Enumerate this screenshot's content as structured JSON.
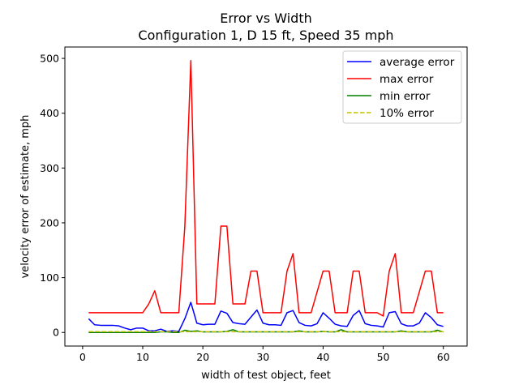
{
  "chart_data": {
    "type": "line",
    "title": "Error vs Width",
    "subtitle": "Configuration 1, D 15 ft, Speed 35 mph",
    "xlabel": "width of test object, feet",
    "ylabel": "velocity error of estimate, mph",
    "xlim": [
      -2.95,
      63.95
    ],
    "ylim": [
      -24.8,
      520.8
    ],
    "xticks": [
      0,
      10,
      20,
      30,
      40,
      50,
      60
    ],
    "yticks": [
      0,
      100,
      200,
      300,
      400,
      500
    ],
    "legend_position": "top-right",
    "x": [
      1,
      2,
      3,
      4,
      5,
      6,
      7,
      8,
      9,
      10,
      11,
      12,
      13,
      14,
      15,
      16,
      17,
      18,
      19,
      20,
      21,
      22,
      23,
      24,
      25,
      26,
      27,
      28,
      29,
      30,
      31,
      32,
      33,
      34,
      35,
      36,
      37,
      38,
      39,
      40,
      41,
      42,
      43,
      44,
      45,
      46,
      47,
      48,
      49,
      50,
      51,
      52,
      53,
      54,
      55,
      56,
      57,
      58,
      59,
      60
    ],
    "series": [
      {
        "name": "average error",
        "color": "#0000ff",
        "style": "solid",
        "values": [
          25,
          14,
          13,
          13,
          13,
          12,
          8,
          5,
          8,
          8,
          3,
          3,
          6,
          2,
          3,
          2,
          25,
          55,
          17,
          14,
          15,
          15,
          39,
          35,
          18,
          16,
          15,
          28,
          41,
          17,
          14,
          14,
          13,
          36,
          40,
          18,
          13,
          12,
          16,
          36,
          26,
          15,
          12,
          11,
          31,
          40,
          16,
          13,
          12,
          10,
          36,
          38,
          16,
          12,
          12,
          17,
          36,
          27,
          14,
          11
        ]
      },
      {
        "name": "max error",
        "color": "#ff0000",
        "style": "solid",
        "values": [
          36,
          36,
          36,
          36,
          36,
          36,
          36,
          36,
          36,
          36,
          52,
          76,
          36,
          36,
          36,
          36,
          193,
          496,
          52,
          52,
          52,
          52,
          194,
          194,
          52,
          52,
          52,
          112,
          112,
          36,
          36,
          36,
          36,
          112,
          144,
          36,
          36,
          36,
          74,
          112,
          112,
          36,
          36,
          36,
          112,
          112,
          36,
          36,
          36,
          30,
          112,
          144,
          36,
          36,
          36,
          74,
          112,
          112,
          36,
          36
        ]
      },
      {
        "name": "min error",
        "color": "#008000",
        "style": "solid",
        "values": [
          0,
          0,
          0,
          0,
          0,
          0,
          0,
          0,
          0,
          0,
          0,
          0,
          1,
          1,
          0,
          0,
          4,
          2,
          3,
          1,
          1,
          1,
          1,
          2,
          5,
          1,
          1,
          1,
          1,
          1,
          1,
          1,
          1,
          1,
          1,
          3,
          1,
          1,
          1,
          2,
          1,
          1,
          5,
          1,
          1,
          1,
          1,
          1,
          1,
          1,
          1,
          1,
          3,
          1,
          1,
          1,
          1,
          1,
          4,
          1
        ]
      },
      {
        "name": "10% error",
        "color": "#bfbf00",
        "style": "dashed",
        "values": [
          1.5,
          1.5,
          1.5,
          1.5,
          1.5,
          1.5,
          1.5,
          1.5,
          1.5,
          1.5,
          1.5,
          1.5,
          1.5,
          1.5,
          1.5,
          1.5,
          1.5,
          1.5,
          1.5,
          1.5,
          1.5,
          1.5,
          1.5,
          1.5,
          1.5,
          1.5,
          1.5,
          1.5,
          1.5,
          1.5,
          1.5,
          1.5,
          1.5,
          1.5,
          1.5,
          1.5,
          1.5,
          1.5,
          1.5,
          1.5,
          1.5,
          1.5,
          1.5,
          1.5,
          1.5,
          1.5,
          1.5,
          1.5,
          1.5,
          1.5,
          1.5,
          1.5,
          1.5,
          1.5,
          1.5,
          1.5,
          1.5,
          1.5,
          1.5,
          1.5
        ]
      }
    ]
  }
}
